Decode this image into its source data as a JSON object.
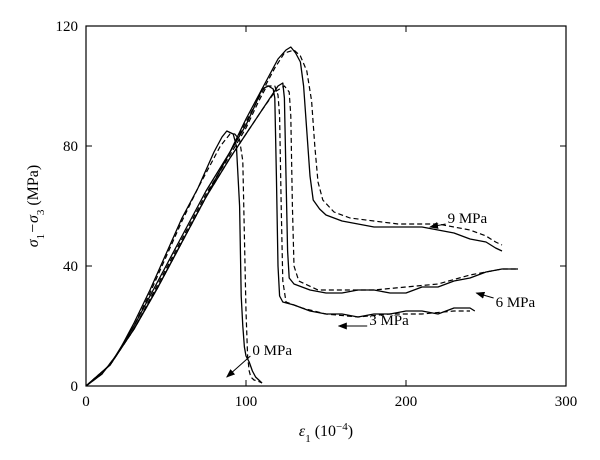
{
  "chart_data": {
    "type": "line",
    "xlim": [
      0,
      300
    ],
    "ylim": [
      0,
      120
    ],
    "x_ticks": [
      0,
      100,
      200,
      300
    ],
    "y_ticks": [
      0,
      40,
      80,
      120
    ],
    "x_label_main": "ε",
    "x_label_sub": "1",
    "x_label_unit": " (10",
    "x_label_exp": "−4",
    "x_label_close": ")",
    "y_label_a": "σ",
    "y_label_a_sub": "1",
    "y_label_dash": "−σ",
    "y_label_b_sub": "3",
    "y_label_unit": " (MPa)",
    "grid": false,
    "legend": "none",
    "series": [
      {
        "name": "0 MPa",
        "label": "0 MPa",
        "label_pos": [
          104,
          12
        ],
        "arrow_to": [
          88,
          3
        ],
        "solid": [
          [
            0,
            0
          ],
          [
            10,
            4
          ],
          [
            20,
            11
          ],
          [
            30,
            21
          ],
          [
            40,
            32
          ],
          [
            50,
            44
          ],
          [
            60,
            56
          ],
          [
            70,
            66
          ],
          [
            75,
            72
          ],
          [
            80,
            78
          ],
          [
            85,
            83
          ],
          [
            88,
            85
          ],
          [
            92,
            84
          ],
          [
            94,
            80
          ],
          [
            96,
            60
          ],
          [
            97,
            30
          ],
          [
            98,
            20
          ],
          [
            99,
            13
          ],
          [
            100,
            10
          ],
          [
            101,
            9
          ],
          [
            102,
            8
          ],
          [
            104,
            5
          ],
          [
            106,
            3
          ],
          [
            108,
            2
          ],
          [
            110,
            1
          ]
        ],
        "dashed": [
          [
            0,
            0
          ],
          [
            10,
            4
          ],
          [
            20,
            11
          ],
          [
            30,
            20
          ],
          [
            40,
            31
          ],
          [
            50,
            43
          ],
          [
            60,
            55
          ],
          [
            70,
            66
          ],
          [
            78,
            74
          ],
          [
            84,
            80
          ],
          [
            90,
            84
          ],
          [
            93,
            84
          ],
          [
            96,
            82
          ],
          [
            98,
            75
          ],
          [
            99,
            50
          ],
          [
            100,
            25
          ],
          [
            101,
            10
          ],
          [
            102,
            5
          ],
          [
            103,
            3
          ],
          [
            105,
            2
          ],
          [
            108,
            1.5
          ],
          [
            110,
            1
          ]
        ]
      },
      {
        "name": "3 MPa",
        "label": "3 MPa",
        "label_pos": [
          177,
          22
        ],
        "arrow_to": [
          158,
          20
        ],
        "solid": [
          [
            0,
            0
          ],
          [
            15,
            7
          ],
          [
            30,
            20
          ],
          [
            45,
            35
          ],
          [
            60,
            50
          ],
          [
            75,
            65
          ],
          [
            90,
            78
          ],
          [
            100,
            87
          ],
          [
            106,
            94
          ],
          [
            110,
            99
          ],
          [
            114,
            100
          ],
          [
            117,
            99
          ],
          [
            118,
            96
          ],
          [
            119,
            70
          ],
          [
            120,
            40
          ],
          [
            121,
            30
          ],
          [
            123,
            28
          ],
          [
            130,
            27
          ],
          [
            140,
            25
          ],
          [
            150,
            24
          ],
          [
            160,
            24
          ],
          [
            170,
            23
          ],
          [
            180,
            24
          ],
          [
            190,
            24
          ],
          [
            200,
            25
          ],
          [
            210,
            25
          ],
          [
            220,
            24
          ],
          [
            230,
            26
          ],
          [
            240,
            26
          ],
          [
            243,
            25
          ]
        ],
        "dashed": [
          [
            0,
            0
          ],
          [
            15,
            7
          ],
          [
            30,
            19
          ],
          [
            45,
            34
          ],
          [
            60,
            49
          ],
          [
            75,
            64
          ],
          [
            90,
            77
          ],
          [
            100,
            86
          ],
          [
            108,
            95
          ],
          [
            113,
            100
          ],
          [
            118,
            100
          ],
          [
            120,
            97
          ],
          [
            121,
            90
          ],
          [
            122,
            60
          ],
          [
            123,
            35
          ],
          [
            125,
            28
          ],
          [
            135,
            26
          ],
          [
            150,
            24
          ],
          [
            170,
            23
          ],
          [
            190,
            24
          ],
          [
            210,
            24
          ],
          [
            230,
            25
          ],
          [
            240,
            25
          ]
        ]
      },
      {
        "name": "6 MPa",
        "label": "6 MPa",
        "label_pos": [
          256,
          28
        ],
        "arrow_to": [
          244,
          31
        ],
        "solid": [
          [
            0,
            0
          ],
          [
            15,
            7
          ],
          [
            30,
            19
          ],
          [
            45,
            33
          ],
          [
            60,
            48
          ],
          [
            75,
            63
          ],
          [
            90,
            76
          ],
          [
            100,
            84
          ],
          [
            110,
            92
          ],
          [
            115,
            96
          ],
          [
            120,
            100
          ],
          [
            123,
            101
          ],
          [
            124,
            96
          ],
          [
            125,
            70
          ],
          [
            126,
            45
          ],
          [
            127,
            36
          ],
          [
            130,
            34
          ],
          [
            140,
            32
          ],
          [
            150,
            31
          ],
          [
            160,
            31
          ],
          [
            170,
            32
          ],
          [
            180,
            32
          ],
          [
            190,
            31
          ],
          [
            200,
            31
          ],
          [
            210,
            33
          ],
          [
            220,
            33
          ],
          [
            230,
            35
          ],
          [
            240,
            36
          ],
          [
            250,
            38
          ],
          [
            260,
            39
          ],
          [
            270,
            39
          ]
        ],
        "dashed": [
          [
            0,
            0
          ],
          [
            15,
            7
          ],
          [
            30,
            19
          ],
          [
            45,
            33
          ],
          [
            60,
            48
          ],
          [
            75,
            63
          ],
          [
            90,
            76
          ],
          [
            100,
            84
          ],
          [
            110,
            92
          ],
          [
            118,
            98
          ],
          [
            124,
            100
          ],
          [
            127,
            98
          ],
          [
            128,
            90
          ],
          [
            129,
            60
          ],
          [
            130,
            40
          ],
          [
            133,
            35
          ],
          [
            145,
            32
          ],
          [
            160,
            32
          ],
          [
            180,
            32
          ],
          [
            200,
            33
          ],
          [
            220,
            34
          ],
          [
            240,
            37
          ],
          [
            260,
            39
          ],
          [
            270,
            39
          ]
        ]
      },
      {
        "name": "9 MPa",
        "label": "9 MPa",
        "label_pos": [
          226,
          56
        ],
        "arrow_to": [
          215,
          53
        ],
        "solid": [
          [
            0,
            0
          ],
          [
            15,
            7
          ],
          [
            30,
            19
          ],
          [
            45,
            33
          ],
          [
            60,
            48
          ],
          [
            75,
            63
          ],
          [
            90,
            78
          ],
          [
            100,
            89
          ],
          [
            110,
            99
          ],
          [
            115,
            104
          ],
          [
            120,
            109
          ],
          [
            125,
            112
          ],
          [
            128,
            113
          ],
          [
            131,
            111
          ],
          [
            134,
            108
          ],
          [
            136,
            100
          ],
          [
            138,
            85
          ],
          [
            140,
            70
          ],
          [
            142,
            62
          ],
          [
            146,
            59
          ],
          [
            150,
            57
          ],
          [
            160,
            55
          ],
          [
            170,
            54
          ],
          [
            180,
            53
          ],
          [
            190,
            53
          ],
          [
            200,
            53
          ],
          [
            210,
            53
          ],
          [
            220,
            52
          ],
          [
            230,
            51
          ],
          [
            240,
            49
          ],
          [
            250,
            48
          ],
          [
            256,
            46
          ],
          [
            260,
            45
          ]
        ],
        "dashed": [
          [
            0,
            0
          ],
          [
            15,
            7
          ],
          [
            30,
            19
          ],
          [
            45,
            33
          ],
          [
            60,
            48
          ],
          [
            75,
            63
          ],
          [
            90,
            78
          ],
          [
            100,
            88
          ],
          [
            110,
            98
          ],
          [
            118,
            106
          ],
          [
            124,
            111
          ],
          [
            130,
            112
          ],
          [
            134,
            110
          ],
          [
            138,
            105
          ],
          [
            141,
            95
          ],
          [
            143,
            80
          ],
          [
            145,
            68
          ],
          [
            148,
            62
          ],
          [
            155,
            58
          ],
          [
            165,
            56
          ],
          [
            180,
            55
          ],
          [
            195,
            54
          ],
          [
            210,
            54
          ],
          [
            220,
            54
          ],
          [
            230,
            53
          ],
          [
            240,
            52
          ],
          [
            250,
            50
          ],
          [
            256,
            48
          ],
          [
            260,
            47
          ]
        ]
      }
    ]
  }
}
